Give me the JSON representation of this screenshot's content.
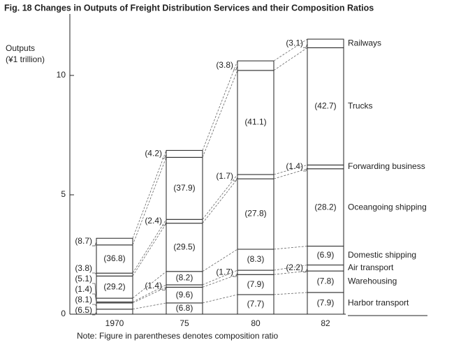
{
  "chart_data": {
    "type": "stacked-bar",
    "title": "Fig. 18  Changes in Outputs of Freight Distribution Services and their Composition Ratios",
    "y_label": [
      "Outputs",
      "(¥1 trillion)"
    ],
    "note": "Note: Figure in parentheses denotes composition ratio",
    "categories": [
      "1970",
      "75",
      "80",
      "82"
    ],
    "ylim": [
      0,
      12.7
    ],
    "yticks": [
      0,
      5,
      10
    ],
    "series": [
      {
        "name": "Harbor transport",
        "color": "#ffffff",
        "values": [
          0.21,
          0.47,
          0.82,
          0.91
        ],
        "ratios": [
          "(6.5)",
          "(6.8)",
          "(7.7)",
          "(7.9)"
        ]
      },
      {
        "name": "Warehousing",
        "color": "#ffffff",
        "values": [
          0.26,
          0.66,
          0.84,
          0.9
        ],
        "ratios": [
          "(8.1)",
          "(9.6)",
          "(7.9)",
          "(7.8)"
        ]
      },
      {
        "name": "Air transport",
        "color": "#ffffff",
        "values": [
          0.04,
          0.1,
          0.18,
          0.25
        ],
        "ratios": [
          "(1.4)",
          "(1.4)",
          "(1.7)",
          "(2.2)"
        ]
      },
      {
        "name": "Domestic shipping",
        "color": "#ffffff",
        "values": [
          0.16,
          0.56,
          0.88,
          0.79
        ],
        "ratios": [
          "(5.1)",
          "(8.2)",
          "(8.3)",
          "(6.9)"
        ]
      },
      {
        "name": "Oceangoing shipping",
        "color": "#ffffff",
        "values": [
          0.93,
          2.02,
          2.95,
          3.24
        ],
        "ratios": [
          "(29.2)",
          "(29.5)",
          "(27.8)",
          "(28.2)"
        ]
      },
      {
        "name": "Forwarding business",
        "color": "#ffffff",
        "values": [
          0.12,
          0.16,
          0.18,
          0.16
        ],
        "ratios": [
          "(3.8)",
          "(2.4)",
          "(1.7)",
          "(1.4)"
        ]
      },
      {
        "name": "Trucks",
        "color": "#ffffff",
        "values": [
          1.18,
          2.6,
          4.36,
          4.91
        ],
        "ratios": [
          "(36.8)",
          "(37.9)",
          "(41.1)",
          "(42.7)"
        ]
      },
      {
        "name": "Railways",
        "color": "#ffffff",
        "values": [
          0.28,
          0.29,
          0.4,
          0.36
        ],
        "ratios": [
          "(8.7)",
          "(4.2)",
          "(3.8)",
          "(3.1)"
        ]
      }
    ]
  }
}
